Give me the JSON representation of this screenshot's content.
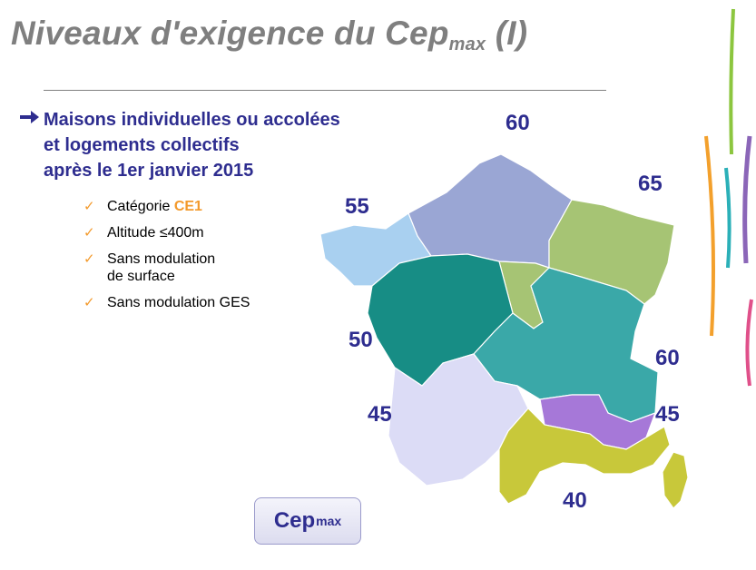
{
  "slide": {
    "title_main": "Niveaux d'exigence du Cep",
    "title_sub": "max",
    "title_suffix": " (I)",
    "heading_lines": [
      "Maisons individuelles ou accolées",
      "et logements collectifs",
      "après le 1er janvier 2015"
    ],
    "bullets": {
      "b1_prefix": "Catégorie ",
      "b1_highlight": "CE1",
      "b2": "Altitude ≤400m",
      "b3_line1": "Sans modulation",
      "b3_line2": "de surface",
      "b4": "Sans modulation GES"
    },
    "check_icon": "✓",
    "button": {
      "main": "Cep",
      "sub": "max"
    }
  },
  "map": {
    "zones": [
      {
        "label": "60",
        "color": "#9aa6d4"
      },
      {
        "label": "65",
        "color": "#a6c474"
      },
      {
        "label": "55",
        "color": "#a9d0f0"
      },
      {
        "label": "50",
        "color": "#178d85"
      },
      {
        "label": "60",
        "color": "#3aa8a8"
      },
      {
        "label": "45",
        "color": "#dcdcf6"
      },
      {
        "label": "45",
        "color": "#a678d8"
      },
      {
        "label": "40",
        "color": "#c8c83a"
      }
    ]
  },
  "colors": {
    "accent": "#2e2d8f",
    "highlight": "#f39a2c",
    "title": "#7f7f7f"
  }
}
